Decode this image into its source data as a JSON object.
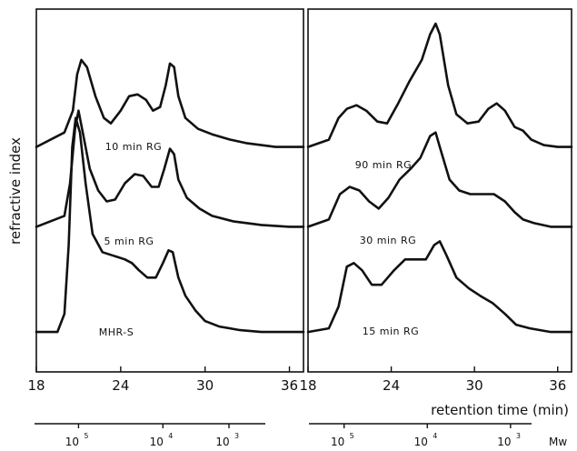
{
  "chart_data": {
    "type": "line",
    "ylabel": "refractive index",
    "xlabel": "retention time (min)",
    "mw_unit": "Mw",
    "panels": [
      {
        "xlim": [
          18,
          37
        ],
        "xticks": [
          18,
          24,
          30,
          36
        ],
        "mw_ticks": [
          {
            "base": "10",
            "exp": "5",
            "time": 21.0
          },
          {
            "base": "10",
            "exp": "4",
            "time": 27.0
          },
          {
            "base": "10",
            "exp": "3",
            "time": 31.7
          }
        ],
        "series": [
          {
            "label": "10 min RG",
            "points": [
              [
                18,
                0.62
              ],
              [
                20,
                0.66
              ],
              [
                20.6,
                0.72
              ],
              [
                20.9,
                0.82
              ],
              [
                21.2,
                0.86
              ],
              [
                21.6,
                0.84
              ],
              [
                22.2,
                0.76
              ],
              [
                22.8,
                0.7
              ],
              [
                23.3,
                0.685
              ],
              [
                24,
                0.72
              ],
              [
                24.6,
                0.76
              ],
              [
                25.2,
                0.765
              ],
              [
                25.8,
                0.75
              ],
              [
                26.3,
                0.72
              ],
              [
                26.8,
                0.73
              ],
              [
                27.2,
                0.79
              ],
              [
                27.5,
                0.85
              ],
              [
                27.8,
                0.84
              ],
              [
                28.1,
                0.76
              ],
              [
                28.6,
                0.7
              ],
              [
                29.5,
                0.67
              ],
              [
                30.5,
                0.655
              ],
              [
                31.8,
                0.64
              ],
              [
                33,
                0.63
              ],
              [
                34,
                0.625
              ],
              [
                35,
                0.62
              ],
              [
                36,
                0.62
              ],
              [
                37,
                0.62
              ]
            ]
          },
          {
            "label": "5 min RG",
            "points": [
              [
                18,
                0.4
              ],
              [
                20,
                0.43
              ],
              [
                20.4,
                0.52
              ],
              [
                20.75,
                0.67
              ],
              [
                21.0,
                0.72
              ],
              [
                21.3,
                0.66
              ],
              [
                21.8,
                0.56
              ],
              [
                22.4,
                0.5
              ],
              [
                23,
                0.47
              ],
              [
                23.6,
                0.475
              ],
              [
                24.3,
                0.52
              ],
              [
                25,
                0.545
              ],
              [
                25.6,
                0.54
              ],
              [
                26.2,
                0.51
              ],
              [
                26.7,
                0.51
              ],
              [
                27.1,
                0.56
              ],
              [
                27.5,
                0.615
              ],
              [
                27.8,
                0.6
              ],
              [
                28.1,
                0.53
              ],
              [
                28.7,
                0.48
              ],
              [
                29.6,
                0.45
              ],
              [
                30.5,
                0.43
              ],
              [
                32,
                0.415
              ],
              [
                34,
                0.405
              ],
              [
                36,
                0.4
              ],
              [
                37,
                0.4
              ]
            ]
          },
          {
            "label": "MHR-S",
            "points": [
              [
                18,
                0.11
              ],
              [
                19.5,
                0.11
              ],
              [
                20.0,
                0.16
              ],
              [
                20.3,
                0.35
              ],
              [
                20.55,
                0.62
              ],
              [
                20.8,
                0.7
              ],
              [
                21.1,
                0.66
              ],
              [
                21.5,
                0.52
              ],
              [
                22,
                0.38
              ],
              [
                22.7,
                0.33
              ],
              [
                23.5,
                0.32
              ],
              [
                24.3,
                0.31
              ],
              [
                24.8,
                0.3
              ],
              [
                25.3,
                0.28
              ],
              [
                25.9,
                0.26
              ],
              [
                26.5,
                0.26
              ],
              [
                27.0,
                0.3
              ],
              [
                27.4,
                0.335
              ],
              [
                27.7,
                0.33
              ],
              [
                28.1,
                0.26
              ],
              [
                28.6,
                0.21
              ],
              [
                29.3,
                0.17
              ],
              [
                30,
                0.14
              ],
              [
                31,
                0.125
              ],
              [
                32.5,
                0.115
              ],
              [
                34,
                0.11
              ],
              [
                37,
                0.11
              ]
            ]
          }
        ]
      },
      {
        "xlim": [
          18,
          37
        ],
        "xticks": [
          18,
          24,
          30,
          36
        ],
        "mw_ticks": [
          {
            "base": "10",
            "exp": "5",
            "time": 20.6
          },
          {
            "base": "10",
            "exp": "4",
            "time": 26.6
          },
          {
            "base": "10",
            "exp": "3",
            "time": 32.6
          }
        ],
        "series": [
          {
            "label": "90 min RG",
            "points": [
              [
                18,
                0.62
              ],
              [
                19.5,
                0.64
              ],
              [
                20.2,
                0.7
              ],
              [
                20.8,
                0.725
              ],
              [
                21.5,
                0.735
              ],
              [
                22.2,
                0.72
              ],
              [
                23,
                0.69
              ],
              [
                23.7,
                0.685
              ],
              [
                24.5,
                0.74
              ],
              [
                25.3,
                0.8
              ],
              [
                26.2,
                0.86
              ],
              [
                26.8,
                0.93
              ],
              [
                27.2,
                0.96
              ],
              [
                27.5,
                0.93
              ],
              [
                28.1,
                0.79
              ],
              [
                28.7,
                0.71
              ],
              [
                29.5,
                0.685
              ],
              [
                30.3,
                0.69
              ],
              [
                31,
                0.725
              ],
              [
                31.6,
                0.74
              ],
              [
                32.2,
                0.72
              ],
              [
                32.9,
                0.675
              ],
              [
                33.5,
                0.665
              ],
              [
                34.1,
                0.64
              ],
              [
                35,
                0.625
              ],
              [
                36,
                0.62
              ],
              [
                37,
                0.62
              ]
            ]
          },
          {
            "label": "30 min RG",
            "points": [
              [
                18,
                0.4
              ],
              [
                19.5,
                0.42
              ],
              [
                20.3,
                0.49
              ],
              [
                21,
                0.51
              ],
              [
                21.7,
                0.5
              ],
              [
                22.4,
                0.47
              ],
              [
                23.1,
                0.45
              ],
              [
                23.8,
                0.48
              ],
              [
                24.6,
                0.53
              ],
              [
                25.4,
                0.56
              ],
              [
                26.1,
                0.59
              ],
              [
                26.8,
                0.65
              ],
              [
                27.2,
                0.66
              ],
              [
                27.5,
                0.62
              ],
              [
                28.2,
                0.53
              ],
              [
                28.9,
                0.5
              ],
              [
                29.7,
                0.49
              ],
              [
                30.5,
                0.49
              ],
              [
                31.4,
                0.49
              ],
              [
                32.2,
                0.47
              ],
              [
                32.9,
                0.44
              ],
              [
                33.5,
                0.42
              ],
              [
                34.3,
                0.41
              ],
              [
                35.5,
                0.4
              ],
              [
                37,
                0.4
              ]
            ]
          },
          {
            "label": "15 min RG",
            "points": [
              [
                18,
                0.11
              ],
              [
                19.5,
                0.12
              ],
              [
                20.2,
                0.18
              ],
              [
                20.8,
                0.29
              ],
              [
                21.3,
                0.3
              ],
              [
                21.9,
                0.28
              ],
              [
                22.6,
                0.24
              ],
              [
                23.3,
                0.24
              ],
              [
                24.2,
                0.28
              ],
              [
                25,
                0.31
              ],
              [
                25.8,
                0.31
              ],
              [
                26.5,
                0.31
              ],
              [
                27.1,
                0.35
              ],
              [
                27.5,
                0.36
              ],
              [
                28,
                0.32
              ],
              [
                28.7,
                0.26
              ],
              [
                29.6,
                0.23
              ],
              [
                30.4,
                0.21
              ],
              [
                31.3,
                0.19
              ],
              [
                32.2,
                0.16
              ],
              [
                33,
                0.13
              ],
              [
                34,
                0.12
              ],
              [
                35.5,
                0.11
              ],
              [
                37,
                0.11
              ]
            ]
          }
        ]
      }
    ]
  }
}
